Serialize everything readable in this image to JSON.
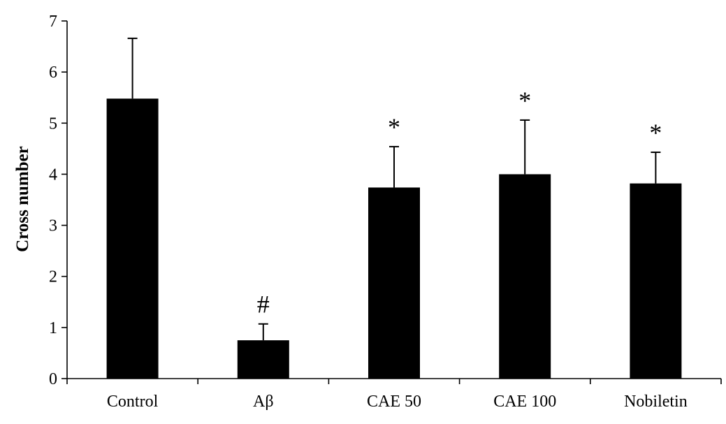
{
  "chart_data": {
    "type": "bar",
    "categories": [
      "Control",
      "Aβ",
      "CAE 50",
      "CAE 100",
      "Nobiletin"
    ],
    "values": [
      5.48,
      0.75,
      3.74,
      4.0,
      3.82
    ],
    "errors": [
      1.18,
      0.32,
      0.8,
      1.06,
      0.61
    ],
    "annotations": [
      "",
      "#",
      "*",
      "*",
      "*"
    ],
    "ylabel": "Cross number",
    "ylim": [
      0,
      7
    ],
    "yticks": [
      0,
      1,
      2,
      3,
      4,
      5,
      6,
      7
    ],
    "grid": false,
    "bar_color": "#000000"
  }
}
